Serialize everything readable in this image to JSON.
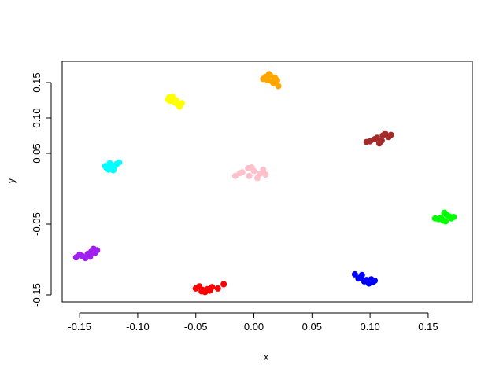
{
  "chart_data": {
    "type": "scatter",
    "title": "",
    "xlabel": "x",
    "ylabel": "y",
    "xlim": [
      -0.165,
      0.188
    ],
    "ylim": [
      -0.16,
      0.18
    ],
    "x_ticks": [
      -0.15,
      -0.1,
      -0.05,
      0.0,
      0.05,
      0.1,
      0.15
    ],
    "x_tick_labels": [
      "-0.15",
      "-0.10",
      "-0.05",
      "0.00",
      "0.05",
      "0.10",
      "0.15"
    ],
    "y_ticks": [
      -0.15,
      -0.05,
      0.05,
      0.1,
      0.15
    ],
    "y_tick_labels": [
      "-0.15",
      "-0.05",
      "0.05",
      "0.10",
      "0.15"
    ],
    "grid": false,
    "legend": "none",
    "series": [
      {
        "color": "#ffa500",
        "points": [
          [
            0.01,
            0.158
          ],
          [
            0.014,
            0.16
          ],
          [
            0.018,
            0.157
          ],
          [
            0.016,
            0.151
          ],
          [
            0.012,
            0.153
          ],
          [
            0.02,
            0.153
          ],
          [
            0.008,
            0.155
          ],
          [
            0.021,
            0.145
          ],
          [
            0.013,
            0.162
          ],
          [
            0.017,
            0.149
          ]
        ]
      },
      {
        "color": "#ffff00",
        "points": [
          [
            -0.073,
            0.129
          ],
          [
            -0.07,
            0.127
          ],
          [
            -0.068,
            0.122
          ],
          [
            -0.066,
            0.12
          ],
          [
            -0.072,
            0.124
          ],
          [
            -0.064,
            0.116
          ],
          [
            -0.07,
            0.13
          ],
          [
            -0.067,
            0.125
          ],
          [
            -0.062,
            0.121
          ],
          [
            -0.074,
            0.126
          ]
        ]
      },
      {
        "color": "#a52a2a",
        "points": [
          [
            0.1,
            0.067
          ],
          [
            0.106,
            0.072
          ],
          [
            0.111,
            0.075
          ],
          [
            0.116,
            0.073
          ],
          [
            0.11,
            0.068
          ],
          [
            0.104,
            0.07
          ],
          [
            0.113,
            0.078
          ],
          [
            0.097,
            0.066
          ],
          [
            0.118,
            0.076
          ],
          [
            0.108,
            0.064
          ]
        ]
      },
      {
        "color": "#00ffff",
        "points": [
          [
            -0.127,
            0.03
          ],
          [
            -0.123,
            0.034
          ],
          [
            -0.12,
            0.031
          ],
          [
            -0.125,
            0.027
          ],
          [
            -0.118,
            0.035
          ],
          [
            -0.122,
            0.028
          ],
          [
            -0.128,
            0.032
          ],
          [
            -0.116,
            0.037
          ],
          [
            -0.121,
            0.026
          ],
          [
            -0.124,
            0.036
          ]
        ]
      },
      {
        "color": "#ffc0cb",
        "points": [
          [
            -0.01,
            0.023
          ],
          [
            -0.005,
            0.029
          ],
          [
            0.0,
            0.025
          ],
          [
            0.005,
            0.021
          ],
          [
            -0.004,
            0.018
          ],
          [
            0.008,
            0.027
          ],
          [
            -0.012,
            0.022
          ],
          [
            0.003,
            0.015
          ],
          [
            0.01,
            0.02
          ],
          [
            -0.002,
            0.03
          ],
          [
            -0.016,
            0.018
          ]
        ]
      },
      {
        "color": "#00ff00",
        "points": [
          [
            0.161,
            -0.041
          ],
          [
            0.166,
            -0.037
          ],
          [
            0.17,
            -0.042
          ],
          [
            0.163,
            -0.045
          ],
          [
            0.168,
            -0.039
          ],
          [
            0.159,
            -0.043
          ],
          [
            0.172,
            -0.04
          ],
          [
            0.165,
            -0.046
          ],
          [
            0.164,
            -0.034
          ],
          [
            0.156,
            -0.042
          ]
        ]
      },
      {
        "color": "#a020f0",
        "points": [
          [
            -0.153,
            -0.097
          ],
          [
            -0.148,
            -0.095
          ],
          [
            -0.143,
            -0.092
          ],
          [
            -0.14,
            -0.089
          ],
          [
            -0.137,
            -0.091
          ],
          [
            -0.145,
            -0.098
          ],
          [
            -0.15,
            -0.093
          ],
          [
            -0.135,
            -0.087
          ],
          [
            -0.141,
            -0.096
          ],
          [
            -0.138,
            -0.085
          ]
        ]
      },
      {
        "color": "#ff0000",
        "points": [
          [
            -0.05,
            -0.141
          ],
          [
            -0.045,
            -0.145
          ],
          [
            -0.04,
            -0.142
          ],
          [
            -0.036,
            -0.139
          ],
          [
            -0.047,
            -0.138
          ],
          [
            -0.042,
            -0.146
          ],
          [
            -0.031,
            -0.141
          ],
          [
            -0.044,
            -0.143
          ],
          [
            -0.038,
            -0.144
          ],
          [
            -0.026,
            -0.135
          ]
        ]
      },
      {
        "color": "#0000ff",
        "points": [
          [
            0.087,
            -0.121
          ],
          [
            0.092,
            -0.125
          ],
          [
            0.097,
            -0.129
          ],
          [
            0.102,
            -0.132
          ],
          [
            0.095,
            -0.131
          ],
          [
            0.09,
            -0.127
          ],
          [
            0.099,
            -0.134
          ],
          [
            0.104,
            -0.13
          ],
          [
            0.093,
            -0.122
          ],
          [
            0.101,
            -0.128
          ]
        ]
      }
    ]
  }
}
